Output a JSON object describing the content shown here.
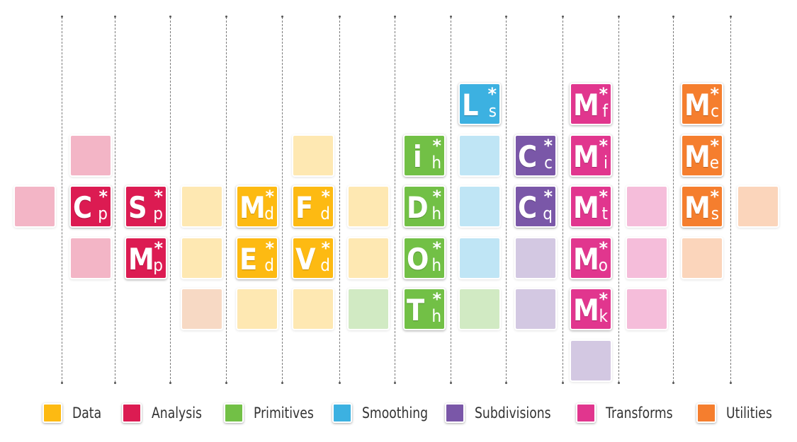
{
  "palette": {
    "data": "#FDBA12",
    "analysis": "#DC1B52",
    "primitives": "#72C046",
    "smoothing": "#3CB1E1",
    "subdivisions": "#7A57A8",
    "transforms": "#E1368E",
    "utilities": "#F57E2E",
    "peach": "#E98A4A"
  },
  "tiles": [
    {
      "col": 0,
      "row": 2,
      "cat": "analysis"
    },
    {
      "col": 1,
      "row": 1,
      "cat": "analysis"
    },
    {
      "col": 1,
      "row": 2,
      "cat": "analysis",
      "sym": "C",
      "sub": "p"
    },
    {
      "col": 1,
      "row": 3,
      "cat": "analysis"
    },
    {
      "col": 2,
      "row": 2,
      "cat": "analysis",
      "sym": "S",
      "sub": "p"
    },
    {
      "col": 2,
      "row": 3,
      "cat": "analysis",
      "sym": "M",
      "sub": "p"
    },
    {
      "col": 3,
      "row": 2,
      "cat": "data"
    },
    {
      "col": 3,
      "row": 3,
      "cat": "data"
    },
    {
      "col": 3,
      "row": 4,
      "cat": "peach"
    },
    {
      "col": 4,
      "row": 2,
      "cat": "data",
      "sym": "M",
      "sub": "d"
    },
    {
      "col": 4,
      "row": 3,
      "cat": "data",
      "sym": "E",
      "sub": "d"
    },
    {
      "col": 4,
      "row": 4,
      "cat": "data"
    },
    {
      "col": 5,
      "row": 1,
      "cat": "data"
    },
    {
      "col": 5,
      "row": 2,
      "cat": "data",
      "sym": "F",
      "sub": "d"
    },
    {
      "col": 5,
      "row": 3,
      "cat": "data",
      "sym": "V",
      "sub": "d"
    },
    {
      "col": 5,
      "row": 4,
      "cat": "data"
    },
    {
      "col": 6,
      "row": 2,
      "cat": "data"
    },
    {
      "col": 6,
      "row": 3,
      "cat": "data"
    },
    {
      "col": 6,
      "row": 4,
      "cat": "primitives"
    },
    {
      "col": 7,
      "row": 1,
      "cat": "primitives",
      "sym": "i",
      "sub": "h"
    },
    {
      "col": 7,
      "row": 2,
      "cat": "primitives",
      "sym": "D",
      "sub": "h"
    },
    {
      "col": 7,
      "row": 3,
      "cat": "primitives",
      "sym": "O",
      "sub": "h"
    },
    {
      "col": 7,
      "row": 4,
      "cat": "primitives",
      "sym": "T",
      "sub": "h"
    },
    {
      "col": 8,
      "row": 0,
      "cat": "smoothing",
      "sym": "L",
      "sub": "s"
    },
    {
      "col": 8,
      "row": 1,
      "cat": "smoothing"
    },
    {
      "col": 8,
      "row": 2,
      "cat": "smoothing"
    },
    {
      "col": 8,
      "row": 3,
      "cat": "smoothing"
    },
    {
      "col": 8,
      "row": 4,
      "cat": "primitives"
    },
    {
      "col": 9,
      "row": 1,
      "cat": "subdivisions",
      "sym": "C",
      "sub": "c"
    },
    {
      "col": 9,
      "row": 2,
      "cat": "subdivisions",
      "sym": "C",
      "sub": "q"
    },
    {
      "col": 9,
      "row": 3,
      "cat": "subdivisions"
    },
    {
      "col": 9,
      "row": 4,
      "cat": "subdivisions"
    },
    {
      "col": 10,
      "row": 0,
      "cat": "transforms",
      "sym": "M",
      "sub": "f"
    },
    {
      "col": 10,
      "row": 1,
      "cat": "transforms",
      "sym": "M",
      "sub": "i"
    },
    {
      "col": 10,
      "row": 2,
      "cat": "transforms",
      "sym": "M",
      "sub": "t"
    },
    {
      "col": 10,
      "row": 3,
      "cat": "transforms",
      "sym": "M",
      "sub": "o"
    },
    {
      "col": 10,
      "row": 4,
      "cat": "transforms",
      "sym": "M",
      "sub": "k"
    },
    {
      "col": 10,
      "row": 5,
      "cat": "subdivisions"
    },
    {
      "col": 11,
      "row": 2,
      "cat": "transforms"
    },
    {
      "col": 11,
      "row": 3,
      "cat": "transforms"
    },
    {
      "col": 11,
      "row": 4,
      "cat": "transforms"
    },
    {
      "col": 12,
      "row": 0,
      "cat": "utilities",
      "sym": "M",
      "sub": "c"
    },
    {
      "col": 12,
      "row": 1,
      "cat": "utilities",
      "sym": "M",
      "sub": "e"
    },
    {
      "col": 12,
      "row": 2,
      "cat": "utilities",
      "sym": "M",
      "sub": "s"
    },
    {
      "col": 12,
      "row": 3,
      "cat": "utilities"
    },
    {
      "col": 13,
      "row": 2,
      "cat": "utilities"
    }
  ],
  "legend": [
    {
      "key": "data",
      "label": "Data"
    },
    {
      "key": "analysis",
      "label": "Analysis"
    },
    {
      "key": "primitives",
      "label": "Primitives"
    },
    {
      "key": "smoothing",
      "label": "Smoothing"
    },
    {
      "key": "subdivisions",
      "label": "Subdivisions"
    },
    {
      "key": "transforms",
      "label": "Transforms"
    },
    {
      "key": "utilities",
      "label": "Utilities"
    }
  ]
}
